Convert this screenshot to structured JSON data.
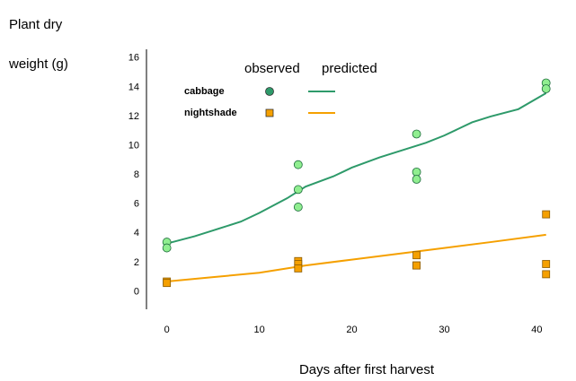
{
  "chart_data": {
    "type": "scatter",
    "y_label": [
      "Plant dry",
      "weight (g)"
    ],
    "x_label": "Days after first harvest",
    "legend_headers": [
      "observed",
      "predicted"
    ],
    "xlim": [
      -2.2,
      42
    ],
    "xticks": [
      0,
      10,
      20,
      30,
      40
    ],
    "ylim": [
      -1.2,
      16.6
    ],
    "yticks": [
      0,
      2,
      4,
      6,
      8,
      10,
      12,
      14,
      16
    ],
    "series": [
      {
        "name": "cabbage",
        "color": "#2e9a6a",
        "marker": "circle",
        "marker_fill": "#90ee90",
        "observed": {
          "x": [
            0,
            0,
            14.2,
            14.2,
            14.2,
            27,
            27,
            27,
            41,
            41
          ],
          "values": [
            3.4,
            3.0,
            8.7,
            7.0,
            5.8,
            10.8,
            8.2,
            7.7,
            14.3,
            13.9
          ]
        },
        "predicted": {
          "x": [
            0,
            3,
            5,
            8,
            10,
            13,
            15,
            18,
            20,
            23,
            25,
            28,
            30,
            33,
            35,
            38,
            41
          ],
          "values": [
            3.3,
            3.8,
            4.2,
            4.8,
            5.4,
            6.4,
            7.2,
            7.9,
            8.5,
            9.2,
            9.6,
            10.2,
            10.7,
            11.6,
            12.0,
            12.5,
            13.6
          ]
        }
      },
      {
        "name": "nightshade",
        "color": "#f5a000",
        "marker": "square",
        "marker_fill": "#f5a000",
        "observed": {
          "x": [
            0,
            0,
            14.2,
            14.2,
            14.2,
            27,
            27,
            27,
            41,
            41,
            41
          ],
          "values": [
            0.7,
            0.6,
            2.1,
            1.9,
            1.6,
            2.5,
            1.8,
            1.8,
            5.3,
            1.9,
            1.2
          ]
        },
        "predicted": {
          "x": [
            0,
            5,
            10,
            15,
            20,
            25,
            30,
            35,
            41
          ],
          "values": [
            0.7,
            1.0,
            1.3,
            1.8,
            2.2,
            2.6,
            3.0,
            3.4,
            3.9
          ]
        }
      }
    ]
  }
}
